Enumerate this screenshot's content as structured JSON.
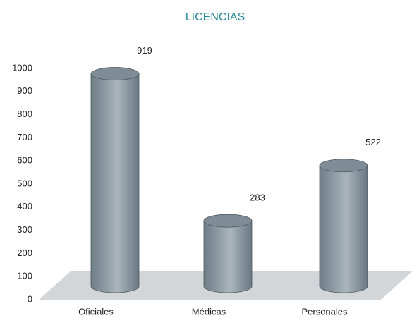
{
  "chart_data": {
    "type": "bar",
    "title": "LICENCIAS",
    "categories": [
      "Oficiales",
      "Médicas",
      "Personales"
    ],
    "values": [
      919,
      283,
      522
    ],
    "color": "#8a979f",
    "ylim": [
      0,
      1000
    ],
    "yticks": [
      0,
      100,
      200,
      300,
      400,
      500,
      600,
      700,
      800,
      900,
      1000
    ]
  }
}
